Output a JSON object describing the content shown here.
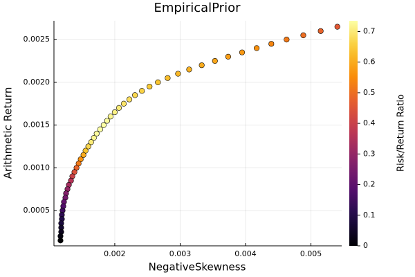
{
  "chart_data": {
    "type": "scatter",
    "title": "EmpiricalPrior",
    "x_label": "NegativeSkewness",
    "y_label": "Arithmetic Return",
    "colorbar_label": "Risk/Return Ratio",
    "colormap": "inferno",
    "x": [
      0.005404,
      0.005149,
      0.004883,
      0.004628,
      0.004394,
      0.00417,
      0.003947,
      0.003734,
      0.003532,
      0.00333,
      0.003138,
      0.002968,
      0.002809,
      0.00266,
      0.002532,
      0.002415,
      0.002309,
      0.002223,
      0.002138,
      0.002064,
      0.002,
      0.001936,
      0.001883,
      0.00183,
      0.001777,
      0.001723,
      0.001681,
      0.001638,
      0.001596,
      0.001553,
      0.001521,
      0.001479,
      0.001447,
      0.001415,
      0.001383,
      0.001351,
      0.00133,
      0.001298,
      0.001277,
      0.001255,
      0.001245,
      0.001223,
      0.001213,
      0.001202,
      0.001191,
      0.001191,
      0.001181,
      0.001181,
      0.001181,
      0.00117,
      0.00117
    ],
    "y": [
      0.00265,
      0.0026,
      0.00255,
      0.0025,
      0.00245,
      0.0024,
      0.00235,
      0.0023,
      0.00225,
      0.0022,
      0.00215,
      0.0021,
      0.00205,
      0.002,
      0.00195,
      0.0019,
      0.00185,
      0.0018,
      0.00175,
      0.0017,
      0.00165,
      0.0016,
      0.00155,
      0.0015,
      0.00145,
      0.0014,
      0.00135,
      0.0013,
      0.00125,
      0.0012,
      0.00115,
      0.0011,
      0.00105,
      0.001,
      0.00095,
      0.0009,
      0.00085,
      0.0008,
      0.00075,
      0.0007,
      0.00065,
      0.0006,
      0.00055,
      0.0005,
      0.00045,
      0.0004,
      0.00035,
      0.0003,
      0.00025,
      0.0002,
      0.00015
    ],
    "color_values": [
      0.46,
      0.48,
      0.5,
      0.52,
      0.54,
      0.56,
      0.57,
      0.58,
      0.59,
      0.6,
      0.61,
      0.62,
      0.63,
      0.64,
      0.65,
      0.66,
      0.67,
      0.68,
      0.69,
      0.7,
      0.71,
      0.72,
      0.73,
      0.74,
      0.74,
      0.73,
      0.72,
      0.7,
      0.67,
      0.64,
      0.6,
      0.56,
      0.52,
      0.48,
      0.44,
      0.4,
      0.36,
      0.33,
      0.3,
      0.27,
      0.24,
      0.21,
      0.18,
      0.15,
      0.12,
      0.1,
      0.08,
      0.06,
      0.04,
      0.02,
      0.0
    ],
    "xlim": [
      0.00107,
      0.00547
    ],
    "xticks": [
      0.002,
      0.003,
      0.004,
      0.005
    ],
    "ylim": [
      8.7e-05,
      0.00272
    ],
    "yticks": [
      0.0005,
      {
        "value": 0.001,
        "label": "0.0010"
      },
      0.0015,
      {
        "value": 0.002,
        "label": "0.0020"
      },
      0.0025
    ],
    "clim": [
      0,
      0.735
    ],
    "cticks": [
      0,
      0.1,
      0.2,
      0.3,
      0.4,
      0.5,
      0.6,
      0.7
    ],
    "grid": true
  }
}
